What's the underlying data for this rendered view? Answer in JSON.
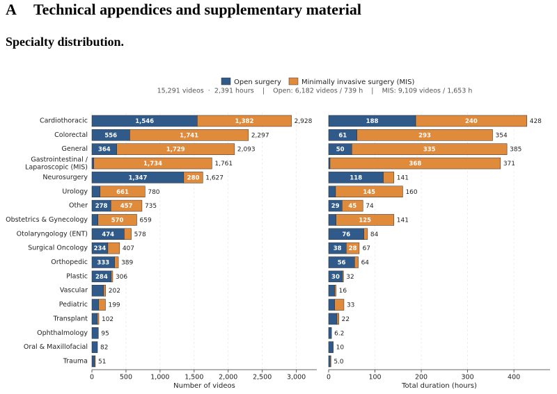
{
  "section": {
    "number": "A",
    "title": "Technical appendices and supplementary material"
  },
  "subsection": "Specialty distribution.",
  "figure_subtitle": "15,291 videos  ·  2,391 hours    |    Open: 6,182 videos / 739 h    |    MIS: 9,109 videos / 1,653 h",
  "chart_data": [
    {
      "type": "bar",
      "orientation": "horizontal",
      "stacked": true,
      "grid": true,
      "categories": [
        "Cardiothoracic",
        "Colorectal",
        "General",
        "Gastrointestinal /\nLaparoscopic (MIS)",
        "Neurosurgery",
        "Urology",
        "Other",
        "Obstetrics & Gynecology",
        "Otolaryngology (ENT)",
        "Surgical Oncology",
        "Orthopedic",
        "Plastic",
        "Vascular",
        "Pediatric",
        "Transplant",
        "Ophthalmology",
        "Oral & Maxillofacial",
        "Trauma"
      ],
      "series": [
        {
          "name": "Open surgery",
          "color": "#2f5a8a",
          "values": [
            1546,
            556,
            364,
            27,
            1347,
            119,
            278,
            89,
            474,
            234,
            333,
            284,
            172,
            100,
            80,
            95,
            82,
            40
          ],
          "value_labels": [
            "1,546",
            "556",
            "364",
            null,
            "1,347",
            null,
            "278",
            null,
            "474",
            "234",
            "333",
            "284",
            null,
            null,
            null,
            null,
            null,
            null
          ]
        },
        {
          "name": "Minimally invasive surgery (MIS)",
          "color": "#e08a3c",
          "values": [
            1382,
            1741,
            1729,
            1734,
            280,
            661,
            457,
            570,
            104,
            173,
            56,
            22,
            30,
            99,
            22,
            0,
            0,
            11
          ],
          "value_labels": [
            "1,382",
            "1,741",
            "1,729",
            "1,734",
            "280",
            "661",
            "457",
            "570",
            null,
            null,
            null,
            null,
            null,
            null,
            null,
            null,
            null,
            null
          ]
        }
      ],
      "totals": [
        2928,
        2297,
        2093,
        1761,
        1627,
        780,
        735,
        659,
        578,
        407,
        389,
        306,
        202,
        199,
        102,
        95,
        82,
        51
      ],
      "total_labels": [
        "2,928",
        "2,297",
        "2,093",
        "1,761",
        "1,627",
        "780",
        "735",
        "659",
        "578",
        "407",
        "389",
        "306",
        "202",
        "199",
        "102",
        "95",
        "82",
        "51"
      ],
      "xlim": [
        0,
        3300
      ],
      "xticks": [
        0,
        500,
        {
          "value": 1000,
          "label": "1,000"
        },
        {
          "value": 1500,
          "label": "1,500"
        },
        {
          "value": 2000,
          "label": "2,000"
        },
        {
          "value": 2500,
          "label": "2,500"
        },
        {
          "value": 3000,
          "label": "3,000"
        }
      ],
      "xlabel": "Number of videos"
    },
    {
      "type": "bar",
      "orientation": "horizontal",
      "stacked": true,
      "grid": true,
      "series": [
        {
          "color": "#2f5a8a",
          "values": [
            188,
            61,
            50,
            3,
            118,
            15,
            29,
            16,
            76,
            38,
            56,
            30,
            13,
            13,
            18,
            6.2,
            10,
            3.5
          ],
          "value_labels": [
            "188",
            "61",
            "50",
            null,
            "118",
            null,
            "29",
            null,
            "76",
            "38",
            "56",
            "30",
            null,
            null,
            null,
            null,
            null,
            null
          ]
        },
        {
          "color": "#e08a3c",
          "values": [
            240,
            293,
            335,
            368,
            23,
            145,
            45,
            125,
            8,
            28,
            8,
            2,
            3,
            20,
            4,
            0,
            0,
            1.5
          ],
          "value_labels": [
            "240",
            "293",
            "335",
            "368",
            null,
            "145",
            "45",
            "125",
            null,
            "28",
            null,
            null,
            null,
            null,
            null,
            null,
            null,
            null
          ]
        }
      ],
      "totals": [
        428,
        354,
        385,
        371,
        141,
        160,
        74,
        141,
        84,
        67,
        64,
        32,
        16,
        33,
        22,
        6.2,
        10,
        5.0
      ],
      "total_labels": [
        "428",
        "354",
        "385",
        "371",
        "141",
        "160",
        "74",
        "141",
        "84",
        "67",
        "64",
        "32",
        "16",
        "33",
        "22",
        "6.2",
        "10",
        "5.0"
      ],
      "xlim": [
        0,
        478
      ],
      "xticks": [
        0,
        100,
        200,
        300,
        400
      ],
      "xlabel": "Total duration (hours)"
    }
  ]
}
